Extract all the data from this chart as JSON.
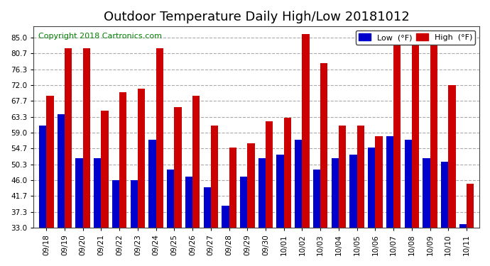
{
  "title": "Outdoor Temperature Daily High/Low 20181012",
  "copyright": "Copyright 2018 Cartronics.com",
  "categories": [
    "09/18",
    "09/19",
    "09/20",
    "09/21",
    "09/22",
    "09/23",
    "09/24",
    "09/25",
    "09/26",
    "09/27",
    "09/28",
    "09/29",
    "09/30",
    "10/01",
    "10/02",
    "10/03",
    "10/04",
    "10/05",
    "10/06",
    "10/07",
    "10/08",
    "10/09",
    "10/10",
    "10/11"
  ],
  "low": [
    61,
    64,
    52,
    52,
    46,
    46,
    57,
    49,
    47,
    44,
    39,
    47,
    52,
    53,
    57,
    49,
    52,
    53,
    55,
    58,
    57,
    52,
    51,
    34
  ],
  "high": [
    69,
    82,
    82,
    65,
    70,
    71,
    82,
    66,
    69,
    61,
    55,
    56,
    62,
    63,
    86,
    78,
    61,
    61,
    58,
    83,
    85,
    83,
    72,
    45
  ],
  "low_color": "#0000cc",
  "high_color": "#cc0000",
  "ylim_min": 33.0,
  "ylim_max": 88.0,
  "yticks": [
    33.0,
    37.3,
    41.7,
    46.0,
    50.3,
    54.7,
    59.0,
    63.3,
    67.7,
    72.0,
    76.3,
    80.7,
    85.0
  ],
  "bg_color": "#ffffff",
  "plot_bg_color": "#ffffff",
  "grid_color": "#aaaaaa",
  "title_fontsize": 13,
  "copyright_fontsize": 8,
  "legend_low_label": "Low  (°F)",
  "legend_high_label": "High  (°F)"
}
